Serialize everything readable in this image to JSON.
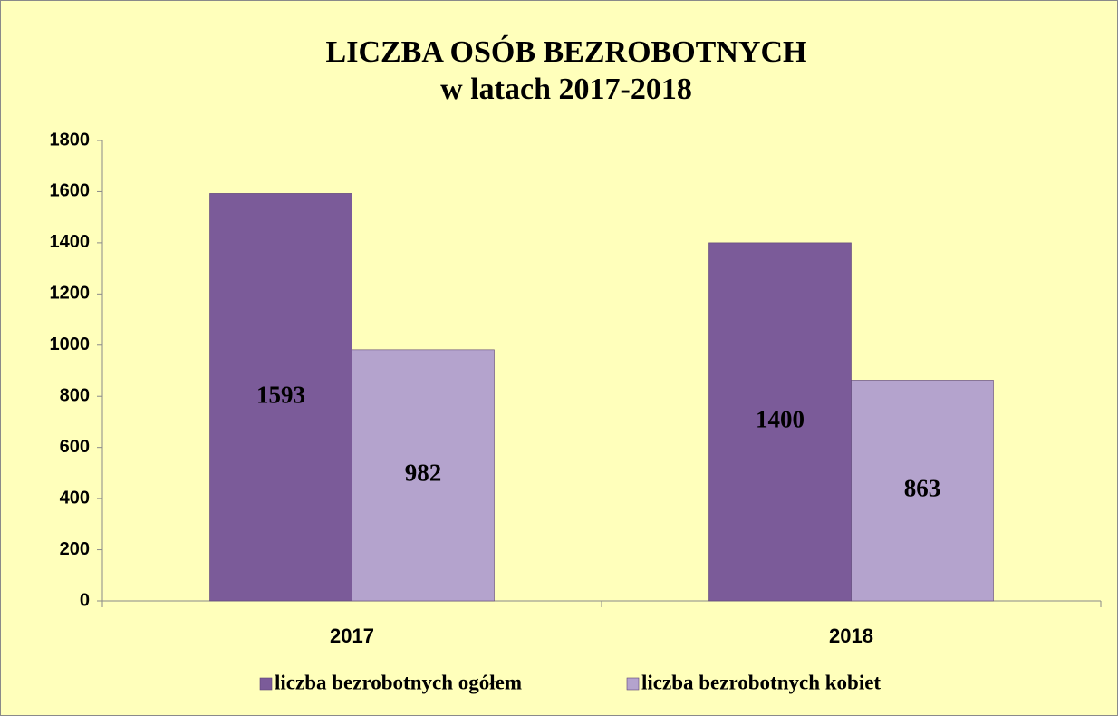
{
  "chart_data": {
    "type": "bar",
    "title": "LICZBA OSÓB BEZROBOTNYCH",
    "subtitle": "w latach 2017-2018",
    "categories": [
      "2017",
      "2018"
    ],
    "series": [
      {
        "name": "liczba bezrobotnych ogółem",
        "color": "#7b5b99",
        "values": [
          1593,
          1400
        ]
      },
      {
        "name": "liczba bezrobotnych kobiet",
        "color": "#b4a3cd",
        "values": [
          982,
          863
        ]
      }
    ],
    "ylim": [
      0,
      1800
    ],
    "yticks": [
      0,
      200,
      400,
      600,
      800,
      1000,
      1200,
      1400,
      1600,
      1800
    ],
    "grid": false,
    "legend": "bottom"
  }
}
